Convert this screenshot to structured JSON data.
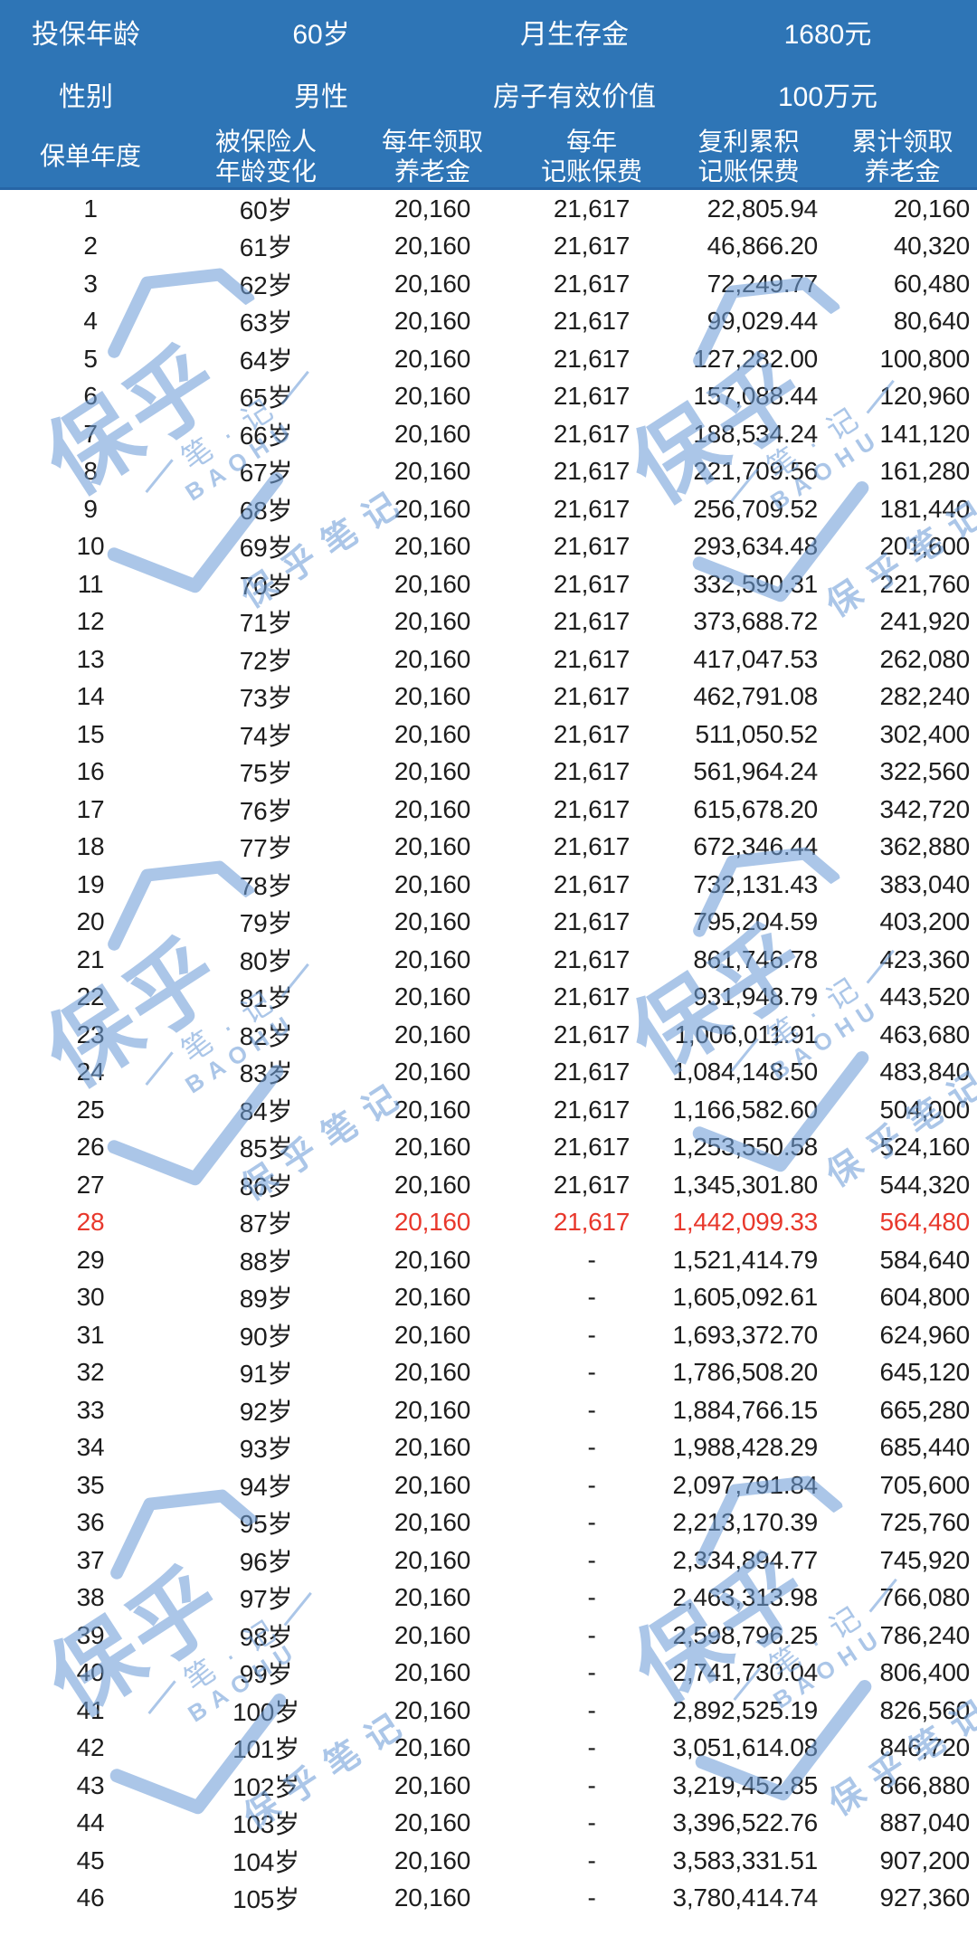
{
  "meta_header": {
    "rows": [
      {
        "label1": "投保年龄",
        "value1": "60岁",
        "label2": "月生存金",
        "value2": "1680元"
      },
      {
        "label1": "性别",
        "value1": "男性",
        "label2": "房子有效价值",
        "value2": "100万元"
      }
    ]
  },
  "columns": [
    {
      "line1": "保单年度",
      "line2": ""
    },
    {
      "line1": "被保险人",
      "line2": "年龄变化"
    },
    {
      "line1": "每年领取",
      "line2": "养老金"
    },
    {
      "line1": "每年",
      "line2": "记账保费"
    },
    {
      "line1": "复利累积",
      "line2": "记账保费"
    },
    {
      "line1": "累计领取",
      "line2": "养老金"
    }
  ],
  "watermark": {
    "brand": "保乎",
    "sub": "笔 · 记",
    "latin": "BAOHU",
    "tail": "保乎笔记"
  },
  "colors": {
    "header_bg": "#2E75B6",
    "highlight_red": "#E8382C",
    "body_text": "#1D1D1D",
    "watermark_blue": "#6F9ED8"
  },
  "chart_data": {
    "type": "table",
    "title": "",
    "highlight_year": 28,
    "no_value_dash": "-",
    "column_labels": [
      "保单年度",
      "被保险人年龄变化",
      "每年领取养老金",
      "每年记账保费",
      "复利累积记账保费",
      "累计领取养老金"
    ],
    "rows": [
      [
        1,
        "60岁",
        "20,160",
        "21,617",
        "22,805.94",
        "20,160"
      ],
      [
        2,
        "61岁",
        "20,160",
        "21,617",
        "46,866.20",
        "40,320"
      ],
      [
        3,
        "62岁",
        "20,160",
        "21,617",
        "72,249.77",
        "60,480"
      ],
      [
        4,
        "63岁",
        "20,160",
        "21,617",
        "99,029.44",
        "80,640"
      ],
      [
        5,
        "64岁",
        "20,160",
        "21,617",
        "127,282.00",
        "100,800"
      ],
      [
        6,
        "65岁",
        "20,160",
        "21,617",
        "157,088.44",
        "120,960"
      ],
      [
        7,
        "66岁",
        "20,160",
        "21,617",
        "188,534.24",
        "141,120"
      ],
      [
        8,
        "67岁",
        "20,160",
        "21,617",
        "221,709.56",
        "161,280"
      ],
      [
        9,
        "68岁",
        "20,160",
        "21,617",
        "256,709.52",
        "181,440"
      ],
      [
        10,
        "69岁",
        "20,160",
        "21,617",
        "293,634.48",
        "201,600"
      ],
      [
        11,
        "70岁",
        "20,160",
        "21,617",
        "332,590.31",
        "221,760"
      ],
      [
        12,
        "71岁",
        "20,160",
        "21,617",
        "373,688.72",
        "241,920"
      ],
      [
        13,
        "72岁",
        "20,160",
        "21,617",
        "417,047.53",
        "262,080"
      ],
      [
        14,
        "73岁",
        "20,160",
        "21,617",
        "462,791.08",
        "282,240"
      ],
      [
        15,
        "74岁",
        "20,160",
        "21,617",
        "511,050.52",
        "302,400"
      ],
      [
        16,
        "75岁",
        "20,160",
        "21,617",
        "561,964.24",
        "322,560"
      ],
      [
        17,
        "76岁",
        "20,160",
        "21,617",
        "615,678.20",
        "342,720"
      ],
      [
        18,
        "77岁",
        "20,160",
        "21,617",
        "672,346.44",
        "362,880"
      ],
      [
        19,
        "78岁",
        "20,160",
        "21,617",
        "732,131.43",
        "383,040"
      ],
      [
        20,
        "79岁",
        "20,160",
        "21,617",
        "795,204.59",
        "403,200"
      ],
      [
        21,
        "80岁",
        "20,160",
        "21,617",
        "861,746.78",
        "423,360"
      ],
      [
        22,
        "81岁",
        "20,160",
        "21,617",
        "931,948.79",
        "443,520"
      ],
      [
        23,
        "82岁",
        "20,160",
        "21,617",
        "1,006,011.91",
        "463,680"
      ],
      [
        24,
        "83岁",
        "20,160",
        "21,617",
        "1,084,148.50",
        "483,840"
      ],
      [
        25,
        "84岁",
        "20,160",
        "21,617",
        "1,166,582.60",
        "504,000"
      ],
      [
        26,
        "85岁",
        "20,160",
        "21,617",
        "1,253,550.58",
        "524,160"
      ],
      [
        27,
        "86岁",
        "20,160",
        "21,617",
        "1,345,301.80",
        "544,320"
      ],
      [
        28,
        "87岁",
        "20,160",
        "21,617",
        "1,442,099.33",
        "564,480"
      ],
      [
        29,
        "88岁",
        "20,160",
        "-",
        "1,521,414.79",
        "584,640"
      ],
      [
        30,
        "89岁",
        "20,160",
        "-",
        "1,605,092.61",
        "604,800"
      ],
      [
        31,
        "90岁",
        "20,160",
        "-",
        "1,693,372.70",
        "624,960"
      ],
      [
        32,
        "91岁",
        "20,160",
        "-",
        "1,786,508.20",
        "645,120"
      ],
      [
        33,
        "92岁",
        "20,160",
        "-",
        "1,884,766.15",
        "665,280"
      ],
      [
        34,
        "93岁",
        "20,160",
        "-",
        "1,988,428.29",
        "685,440"
      ],
      [
        35,
        "94岁",
        "20,160",
        "-",
        "2,097,791.84",
        "705,600"
      ],
      [
        36,
        "95岁",
        "20,160",
        "-",
        "2,213,170.39",
        "725,760"
      ],
      [
        37,
        "96岁",
        "20,160",
        "-",
        "2,334,894.77",
        "745,920"
      ],
      [
        38,
        "97岁",
        "20,160",
        "-",
        "2,463,313.98",
        "766,080"
      ],
      [
        39,
        "98岁",
        "20,160",
        "-",
        "2,598,796.25",
        "786,240"
      ],
      [
        40,
        "99岁",
        "20,160",
        "-",
        "2,741,730.04",
        "806,400"
      ],
      [
        41,
        "100岁",
        "20,160",
        "-",
        "2,892,525.19",
        "826,560"
      ],
      [
        42,
        "101岁",
        "20,160",
        "-",
        "3,051,614.08",
        "846,720"
      ],
      [
        43,
        "102岁",
        "20,160",
        "-",
        "3,219,452.85",
        "866,880"
      ],
      [
        44,
        "103岁",
        "20,160",
        "-",
        "3,396,522.76",
        "887,040"
      ],
      [
        45,
        "104岁",
        "20,160",
        "-",
        "3,583,331.51",
        "907,200"
      ],
      [
        46,
        "105岁",
        "20,160",
        "-",
        "3,780,414.74",
        "927,360"
      ]
    ]
  }
}
